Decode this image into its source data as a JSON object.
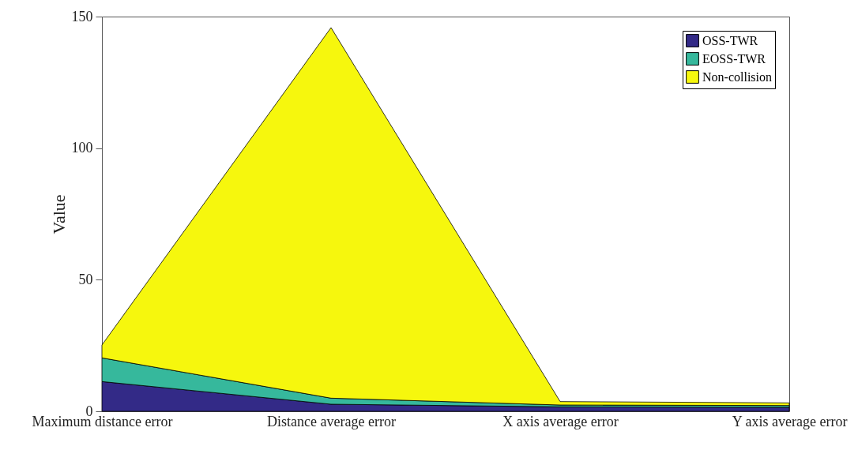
{
  "chart_data": {
    "type": "area",
    "stacked": true,
    "ylabel": "Value",
    "categories": [
      "Maximum distance error",
      "Distance average error",
      "X axis average error",
      "Y axis average error"
    ],
    "series": [
      {
        "name": "OSS-TWR",
        "color": "#332a87",
        "values": [
          11.3,
          2.7,
          1.7,
          1.5
        ]
      },
      {
        "name": "EOSS-TWR",
        "color": "#36b89c",
        "values": [
          9.0,
          2.3,
          0.7,
          0.7
        ]
      },
      {
        "name": "Non-collision",
        "color": "#f6f70d",
        "values": [
          4.9,
          140.8,
          1.3,
          1.0
        ]
      }
    ],
    "ylim": [
      0,
      150
    ],
    "yticks": [
      0,
      50,
      100,
      150
    ],
    "grid": false,
    "legend": "top right"
  }
}
